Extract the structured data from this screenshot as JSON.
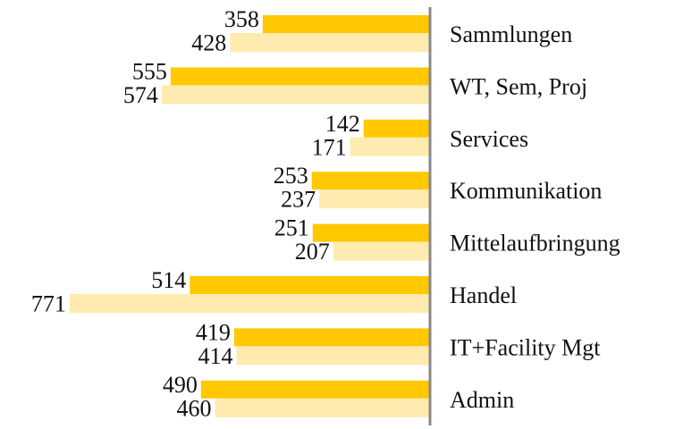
{
  "chart_data": {
    "type": "bar",
    "orientation": "horizontal",
    "categories": [
      "Sammlungen",
      "WT, Sem, Proj",
      "Services",
      "Kommunikation",
      "Mittelaufbringung",
      "Handel",
      "IT+Facility Mgt",
      "Admin"
    ],
    "series": [
      {
        "color": "#ffc800",
        "values": [
          358,
          555,
          142,
          253,
          251,
          514,
          419,
          490
        ]
      },
      {
        "color": "#ffebb0",
        "values": [
          428,
          574,
          171,
          237,
          207,
          771,
          414,
          460
        ]
      }
    ],
    "xlim": [
      0,
      920
    ],
    "axis_color": "#888888"
  }
}
